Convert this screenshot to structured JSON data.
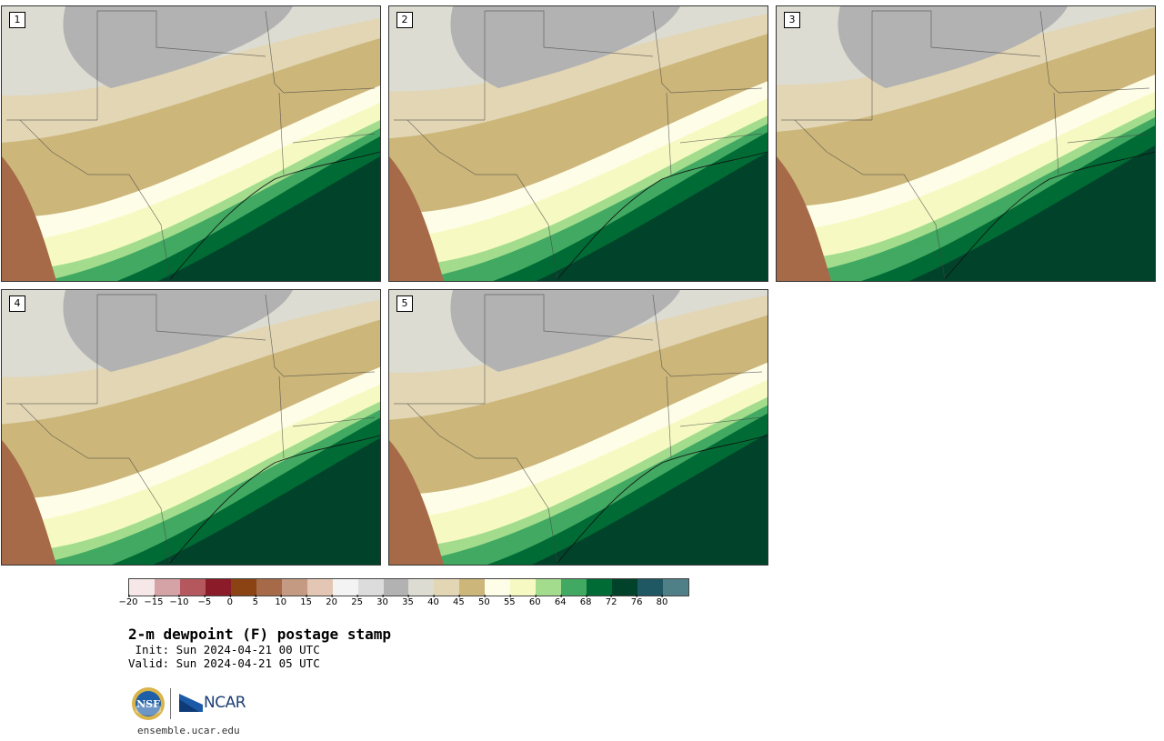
{
  "figure": {
    "title": "2-m dewpoint (F) postage stamp",
    "init_line": " Init: Sun 2024-04-21 00 UTC",
    "valid_line": "Valid: Sun 2024-04-21 05 UTC",
    "website": "ensemble.ucar.edu",
    "logo_left": "NSF",
    "logo_right": "NCAR"
  },
  "panels": [
    {
      "label": "1"
    },
    {
      "label": "2"
    },
    {
      "label": "3"
    },
    {
      "label": "4"
    },
    {
      "label": "5"
    }
  ],
  "colorbar": {
    "ticks": [
      "−20",
      "−15",
      "−10",
      "−5",
      "0",
      "5",
      "10",
      "15",
      "20",
      "25",
      "30",
      "35",
      "40",
      "45",
      "50",
      "55",
      "60",
      "64",
      "68",
      "72",
      "76",
      "80"
    ],
    "colors": [
      "#f6e8e8",
      "#d5a2a5",
      "#b4585e",
      "#8c1b29",
      "#8c4314",
      "#a66a48",
      "#c49a82",
      "#e3c7b4",
      "#f3f3f3",
      "#dcdcdc",
      "#b2b2b2",
      "#dcdcd2",
      "#e2d6b4",
      "#ccb67a",
      "#fefde8",
      "#f6fac2",
      "#a3dc8d",
      "#41a961",
      "#006b34",
      "#00432a",
      "#1f5762",
      "#4f7f87"
    ]
  }
}
